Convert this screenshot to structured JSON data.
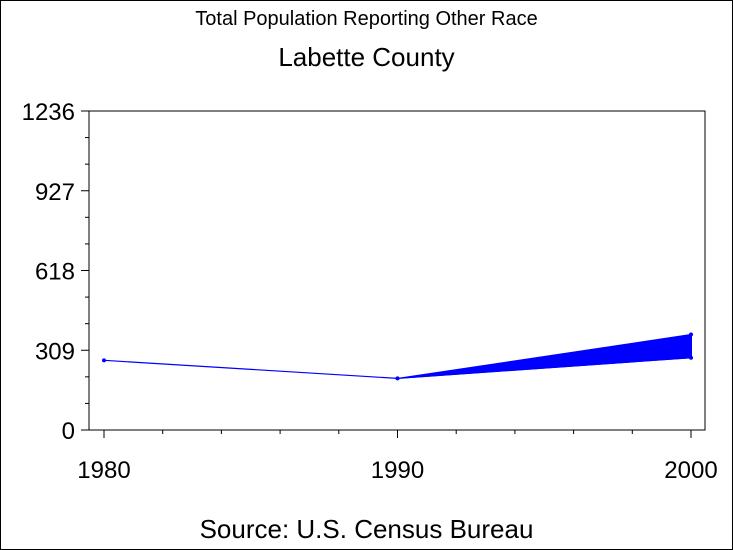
{
  "chart_data": {
    "type": "line",
    "title": "Total Population Reporting Other Race",
    "subtitle": "Labette County",
    "source": "Source: U.S. Census Bureau",
    "x": [
      1980,
      1990,
      2000
    ],
    "x_ticks": [
      "1980",
      "1990",
      "2000"
    ],
    "y_ticks": [
      "0",
      "309",
      "618",
      "927",
      "1236"
    ],
    "ylim": [
      0,
      1236
    ],
    "xlim": [
      1980,
      2000
    ],
    "series": [
      {
        "values": [
          270,
          200,
          280
        ]
      }
    ],
    "range_2000": [
      280,
      370
    ],
    "line_color": "#0000ff",
    "grid": false
  }
}
